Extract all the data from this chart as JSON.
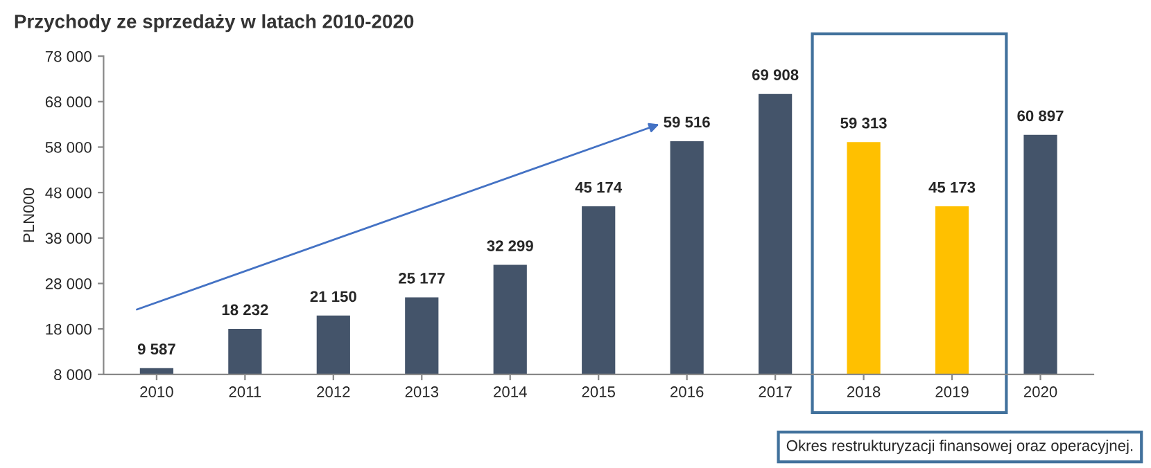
{
  "chart_data": {
    "type": "bar",
    "title": "Przychody ze sprzedaży w latach 2010-2020",
    "ylabel": "PLN000",
    "categories": [
      "2010",
      "2011",
      "2012",
      "2013",
      "2014",
      "2015",
      "2016",
      "2017",
      "2018",
      "2019",
      "2020"
    ],
    "values": [
      9587,
      18232,
      21150,
      25177,
      32299,
      45174,
      59516,
      69908,
      59313,
      45173,
      60897
    ],
    "value_labels": [
      "9 587",
      "18 232",
      "21 150",
      "25 177",
      "32 299",
      "45 174",
      "59 516",
      "69 908",
      "59 313",
      "45 173",
      "60 897"
    ],
    "colors": [
      "#44546a",
      "#44546a",
      "#44546a",
      "#44546a",
      "#44546a",
      "#44546a",
      "#44546a",
      "#44546a",
      "#ffc000",
      "#ffc000",
      "#44546a"
    ],
    "ylim": [
      8000,
      78000
    ],
    "yticks": [
      {
        "value": 8000,
        "label": "8 000"
      },
      {
        "value": 18000,
        "label": "18 000"
      },
      {
        "value": 28000,
        "label": "28 000"
      },
      {
        "value": 38000,
        "label": "38 000"
      },
      {
        "value": 48000,
        "label": "48 000"
      },
      {
        "value": 58000,
        "label": "58 000"
      },
      {
        "value": 68000,
        "label": "68 000"
      },
      {
        "value": 78000,
        "label": "78 000"
      }
    ],
    "annotations": [
      "Okres restrukturyzacji finansowej oraz operacyjnej."
    ],
    "grid": false,
    "legend": false
  }
}
